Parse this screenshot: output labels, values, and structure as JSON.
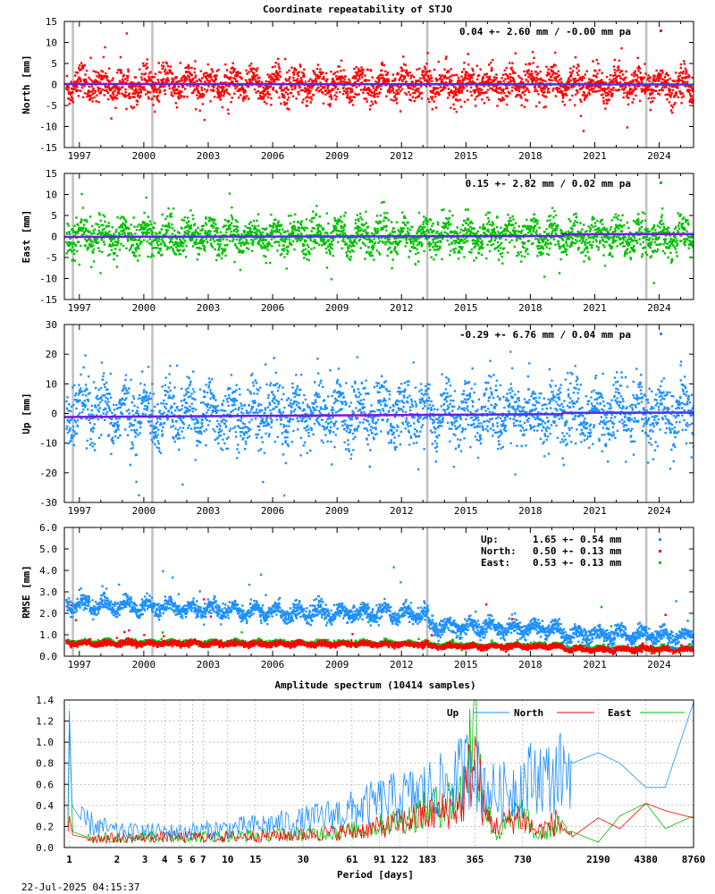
{
  "title": "Coordinate repeatability of STJO",
  "timestamp": "22-Jul-2025 04:15:37",
  "colors": {
    "north": "#ff0000",
    "east": "#00c000",
    "up": "#1e90ff",
    "trend": "#9400d3",
    "break": "#c0c0c0"
  },
  "chart_data": [
    {
      "type": "scatter",
      "name": "north",
      "ylabel": "North [mm]",
      "ylim": [
        -15,
        15
      ],
      "yticks": [
        -15,
        -10,
        -5,
        0,
        5,
        10,
        15
      ],
      "ytick_labels": [
        "-15",
        "-10",
        "-5",
        "0",
        "5",
        "10",
        "15"
      ],
      "xlim": [
        1996.3,
        2025.6
      ],
      "xticks": [
        1997,
        2000,
        2003,
        2006,
        2009,
        2012,
        2015,
        2018,
        2021,
        2024
      ],
      "xtick_labels": [
        "1997",
        "2000",
        "2003",
        "2006",
        "2009",
        "2012",
        "2015",
        "2018",
        "2021",
        "2024"
      ],
      "breaks": [
        1996.7,
        2000.4,
        2013.2,
        2023.4
      ],
      "annotation": "0.04 +- 2.60 mm / -0.00 mm pa",
      "mean": 0.04,
      "std": 2.6,
      "trend": -0.0,
      "trend_line": [
        {
          "x": 1996.3,
          "y": 0.1
        },
        {
          "x": 2025.6,
          "y": 0.0
        }
      ]
    },
    {
      "type": "scatter",
      "name": "east",
      "ylabel": "East [mm]",
      "ylim": [
        -15,
        15
      ],
      "yticks": [
        -15,
        -10,
        -5,
        0,
        5,
        10,
        15
      ],
      "ytick_labels": [
        "-15",
        "-10",
        "-5",
        "0",
        "5",
        "10",
        "15"
      ],
      "xlim": [
        1996.3,
        2025.6
      ],
      "xticks": [
        1997,
        2000,
        2003,
        2006,
        2009,
        2012,
        2015,
        2018,
        2021,
        2024
      ],
      "xtick_labels": [
        "1997",
        "2000",
        "2003",
        "2006",
        "2009",
        "2012",
        "2015",
        "2018",
        "2021",
        "2024"
      ],
      "breaks": [
        1996.7,
        2000.4,
        2013.2,
        2023.4
      ],
      "annotation": "0.15 +- 2.82 mm /  0.02 mm pa",
      "mean": 0.15,
      "std": 2.82,
      "trend": 0.02,
      "trend_line": [
        {
          "x": 1996.3,
          "y": -0.1
        },
        {
          "x": 2019.5,
          "y": 0.1
        },
        {
          "x": 2019.5,
          "y": 0.5
        },
        {
          "x": 2025.6,
          "y": 0.6
        }
      ]
    },
    {
      "type": "scatter",
      "name": "up",
      "ylabel": "Up [mm]",
      "ylim": [
        -30,
        30
      ],
      "yticks": [
        -30,
        -20,
        -10,
        0,
        10,
        20,
        30
      ],
      "ytick_labels": [
        "-30",
        "-20",
        "-10",
        "0",
        "10",
        "20",
        "30"
      ],
      "xlim": [
        1996.3,
        2025.6
      ],
      "xticks": [
        1997,
        2000,
        2003,
        2006,
        2009,
        2012,
        2015,
        2018,
        2021,
        2024
      ],
      "xtick_labels": [
        "1997",
        "2000",
        "2003",
        "2006",
        "2009",
        "2012",
        "2015",
        "2018",
        "2021",
        "2024"
      ],
      "breaks": [
        1996.7,
        2000.4,
        2013.2,
        2023.4
      ],
      "annotation": "-0.29 +- 6.76 mm /  0.04 mm pa",
      "mean": -0.29,
      "std": 6.76,
      "trend": 0.04,
      "trend_line": [
        {
          "x": 1996.3,
          "y": -1.2
        },
        {
          "x": 2019.5,
          "y": -0.2
        },
        {
          "x": 2019.5,
          "y": 0.2
        },
        {
          "x": 2025.6,
          "y": 0.3
        }
      ]
    },
    {
      "type": "scatter",
      "name": "rmse",
      "ylabel": "RMSE [mm]",
      "ylim": [
        0,
        6
      ],
      "yticks": [
        0,
        1,
        2,
        3,
        4,
        5,
        6
      ],
      "ytick_labels": [
        "0.0",
        "1.0",
        "2.0",
        "3.0",
        "4.0",
        "5.0",
        "6.0"
      ],
      "xlim": [
        1996.3,
        2025.6
      ],
      "xticks": [
        1997,
        2000,
        2003,
        2006,
        2009,
        2012,
        2015,
        2018,
        2021,
        2024
      ],
      "xtick_labels": [
        "1997",
        "2000",
        "2003",
        "2006",
        "2009",
        "2012",
        "2015",
        "2018",
        "2021",
        "2024"
      ],
      "breaks": [
        1996.7,
        2000.4,
        2013.2,
        2023.4
      ],
      "legend": [
        {
          "label": "Up:",
          "value": "1.65 +- 0.54 mm",
          "color": "#1e90ff"
        },
        {
          "label": "North:",
          "value": "0.50 +- 0.13 mm",
          "color": "#ff0000"
        },
        {
          "label": "East:",
          "value": "0.53 +- 0.13 mm",
          "color": "#00c000"
        }
      ],
      "series": [
        {
          "name": "Up",
          "mean": 1.65,
          "std": 0.54,
          "levels": [
            [
              1996.3,
              2.4
            ],
            [
              2000.0,
              2.3
            ],
            [
              2003.0,
              2.2
            ],
            [
              2006.0,
              2.05
            ],
            [
              2009.0,
              2.0
            ],
            [
              2012.0,
              2.0
            ],
            [
              2013.2,
              1.95
            ],
            [
              2013.2,
              1.4
            ],
            [
              2016.0,
              1.35
            ],
            [
              2018.0,
              1.3
            ],
            [
              2019.5,
              1.2
            ],
            [
              2019.5,
              1.0
            ],
            [
              2022.0,
              1.0
            ],
            [
              2025.6,
              0.9
            ]
          ]
        },
        {
          "name": "North",
          "mean": 0.5,
          "std": 0.13,
          "levels": [
            [
              1996.3,
              0.6
            ],
            [
              2013.2,
              0.55
            ],
            [
              2013.2,
              0.45
            ],
            [
              2019.5,
              0.45
            ],
            [
              2019.5,
              0.32
            ],
            [
              2025.6,
              0.32
            ]
          ]
        },
        {
          "name": "East",
          "mean": 0.53,
          "std": 0.13,
          "levels": [
            [
              1996.3,
              0.65
            ],
            [
              2013.2,
              0.6
            ],
            [
              2013.2,
              0.5
            ],
            [
              2019.5,
              0.48
            ],
            [
              2019.5,
              0.36
            ],
            [
              2025.6,
              0.36
            ]
          ]
        }
      ]
    },
    {
      "type": "line",
      "name": "spectrum",
      "title": "Amplitude spectrum (10414 samples)",
      "xlabel": "Period [days]",
      "xscale": "log-reciprocal",
      "xlim": [
        0.93,
        8760
      ],
      "ylim": [
        0,
        1.4
      ],
      "yticks": [
        0,
        0.2,
        0.4,
        0.6,
        0.8,
        1.0,
        1.2,
        1.4
      ],
      "ytick_labels": [
        "0.0",
        "0.2",
        "0.4",
        "0.6",
        "0.8",
        "1.0",
        "1.2",
        "1.4"
      ],
      "xticks": [
        1,
        2,
        3,
        4,
        5,
        6,
        7,
        10,
        15,
        30,
        61,
        91,
        122,
        183,
        365,
        730,
        2190,
        4380,
        8760
      ],
      "xtick_labels": [
        "1",
        "2",
        "3",
        "4",
        "5",
        "6",
        "7",
        "10",
        "15",
        "30",
        "61",
        "91",
        "122",
        "183",
        "365",
        "730",
        "2190",
        "4380",
        "8760"
      ],
      "legend": [
        {
          "label": "Up",
          "color": "#1e90ff"
        },
        {
          "label": "North",
          "color": "#ff0000"
        },
        {
          "label": "East",
          "color": "#00c000"
        }
      ],
      "series": [
        {
          "name": "Up",
          "x": [
            0.98,
            1.0,
            1.04,
            1.2,
            2,
            5,
            10,
            30,
            61,
            100,
            150,
            183,
            250,
            330,
            360,
            365,
            370,
            420,
            500,
            700,
            900,
            1100,
            1500,
            2190,
            3000,
            4380,
            5800,
            8760
          ],
          "y": [
            0.3,
            1.3,
            0.4,
            0.25,
            0.15,
            0.15,
            0.18,
            0.25,
            0.35,
            0.45,
            0.5,
            0.55,
            0.6,
            0.75,
            1.0,
            1.4,
            0.7,
            0.6,
            0.5,
            0.6,
            0.7,
            0.65,
            0.8,
            0.9,
            0.8,
            0.57,
            0.57,
            1.38
          ]
        },
        {
          "name": "North",
          "x": [
            0.98,
            1.0,
            1.05,
            1.3,
            2,
            5,
            10,
            30,
            61,
            100,
            183,
            300,
            365,
            420,
            500,
            700,
            900,
            1200,
            1500,
            2190,
            3000,
            4380,
            5800,
            8760
          ],
          "y": [
            0.15,
            0.3,
            0.12,
            0.09,
            0.09,
            0.1,
            0.1,
            0.12,
            0.15,
            0.2,
            0.3,
            0.4,
            0.9,
            0.3,
            0.2,
            0.3,
            0.15,
            0.25,
            0.1,
            0.28,
            0.18,
            0.42,
            0.35,
            0.28
          ]
        },
        {
          "name": "East",
          "x": [
            0.98,
            1.0,
            1.05,
            1.3,
            2,
            5,
            10,
            30,
            61,
            100,
            183,
            300,
            365,
            420,
            500,
            700,
            900,
            1200,
            1500,
            2190,
            3000,
            4380,
            5800,
            8760
          ],
          "y": [
            0.2,
            1.2,
            0.15,
            0.1,
            0.1,
            0.1,
            0.11,
            0.13,
            0.16,
            0.22,
            0.35,
            0.5,
            1.25,
            0.4,
            0.1,
            0.35,
            0.1,
            0.2,
            0.15,
            0.05,
            0.3,
            0.42,
            0.18,
            0.3
          ]
        }
      ]
    }
  ]
}
